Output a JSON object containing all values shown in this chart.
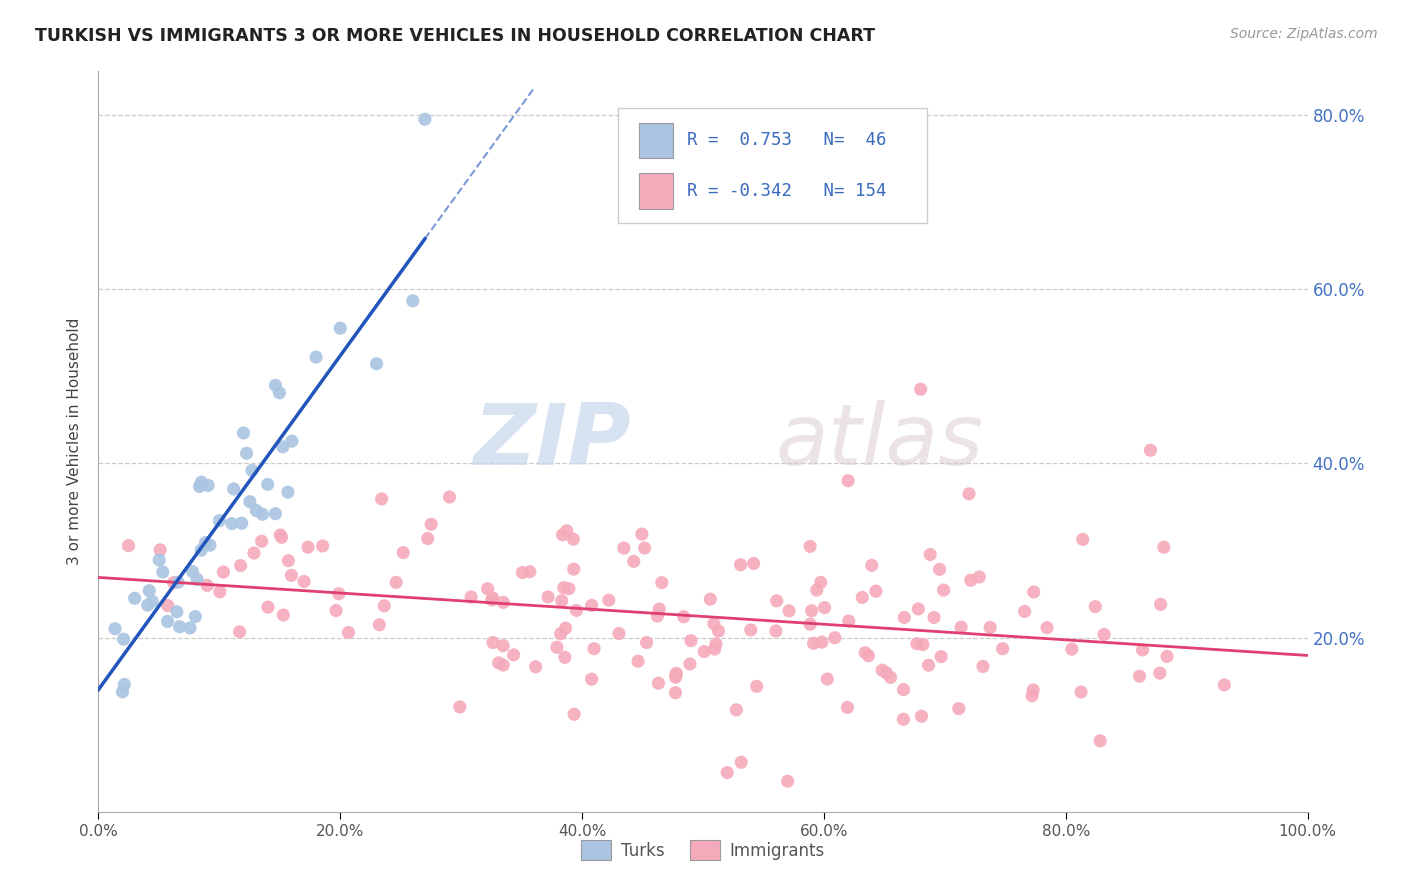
{
  "title": "TURKISH VS IMMIGRANTS 3 OR MORE VEHICLES IN HOUSEHOLD CORRELATION CHART",
  "source": "Source: ZipAtlas.com",
  "ylabel": "3 or more Vehicles in Household",
  "xlabel": "",
  "r_turks": 0.753,
  "n_turks": 46,
  "r_immigrants": -0.342,
  "n_immigrants": 154,
  "turks_color": "#aac4e2",
  "turks_line_color": "#2255bb",
  "immigrants_color": "#f5aabb",
  "immigrants_line_color": "#e04070",
  "background_color": "#ffffff",
  "grid_color": "#cccccc",
  "watermark_zip": "ZIP",
  "watermark_atlas": "atlas",
  "xmin": 0.0,
  "xmax": 1.0,
  "ymin": 0.0,
  "ymax": 0.85,
  "right_yticks": [
    0.0,
    0.2,
    0.4,
    0.6,
    0.8
  ],
  "right_ytick_labels": [
    "",
    "20.0%",
    "40.0%",
    "60.0%",
    "80.0%"
  ],
  "xticks": [
    0.0,
    0.2,
    0.4,
    0.6,
    0.8,
    1.0
  ],
  "xtick_labels": [
    "0.0%",
    "20.0%",
    "40.0%",
    "60.0%",
    "80.0%",
    "100.0%"
  ],
  "legend_r1": "R =  0.753   N=  46",
  "legend_r2": "R = -0.342   N= 154"
}
